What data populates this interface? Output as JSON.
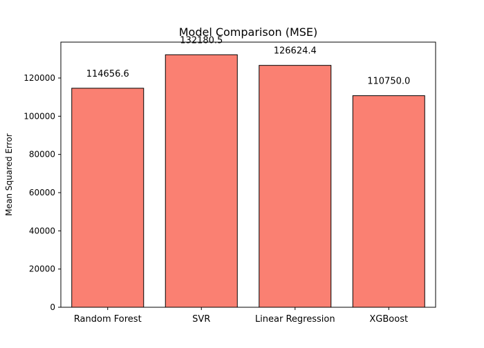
{
  "chart_data": {
    "type": "bar",
    "title": "Model Comparison (MSE)",
    "xlabel": "",
    "ylabel": "Mean Squared Error",
    "categories": [
      "Random Forest",
      "SVR",
      "Linear Regression",
      "XGBoost"
    ],
    "values": [
      114656.6,
      132180.5,
      126624.4,
      110750.0
    ],
    "value_labels": [
      "114656.6",
      "132180.5",
      "126624.4",
      "110750.0"
    ],
    "ylim": [
      0,
      138789
    ],
    "yticks": [
      0,
      20000,
      40000,
      60000,
      80000,
      100000,
      120000
    ],
    "ytick_labels": [
      "0",
      "20000",
      "40000",
      "60000",
      "80000",
      "100000",
      "120000"
    ],
    "grid": false,
    "colors": {
      "bar_fill": "#fa8072",
      "bar_edge": "#000000",
      "axis": "#000000",
      "background": "#ffffff"
    }
  }
}
